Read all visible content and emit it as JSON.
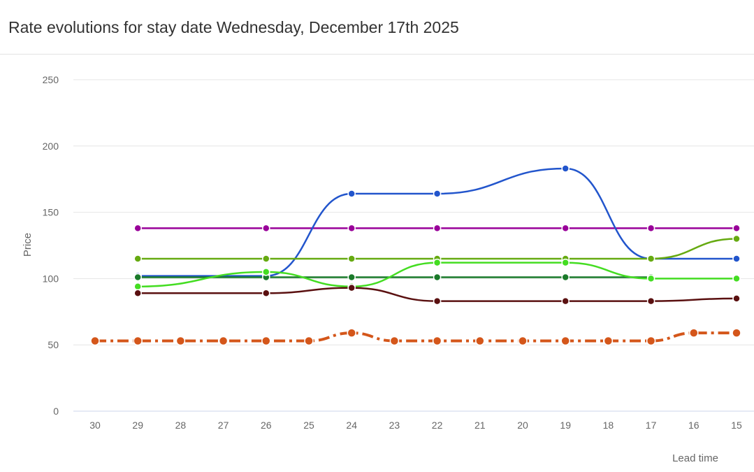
{
  "header": {
    "title": "Rate evolutions for stay date Wednesday, December 17th 2025"
  },
  "chart_data": {
    "type": "line",
    "title": "Rate evolutions for stay date Wednesday, December 17th 2025",
    "xlabel": "Lead time",
    "ylabel": "Price",
    "ylim": [
      0,
      250
    ],
    "yticks": [
      0,
      50,
      100,
      150,
      200,
      250
    ],
    "xticks": [
      30,
      29,
      28,
      27,
      26,
      25,
      24,
      23,
      22,
      21,
      20,
      19,
      18,
      17,
      16,
      15
    ],
    "x_reversed": true,
    "grid": "horizontal",
    "series": [
      {
        "color": "#990099",
        "style": "solid",
        "points": [
          [
            29,
            138
          ],
          [
            26,
            138
          ],
          [
            24,
            138
          ],
          [
            22,
            138
          ],
          [
            19,
            138
          ],
          [
            17,
            138
          ],
          [
            15,
            138
          ]
        ]
      },
      {
        "color": "#2255cc",
        "style": "solid",
        "points": [
          [
            29,
            102
          ],
          [
            26,
            102
          ],
          [
            24,
            164
          ],
          [
            22,
            164
          ],
          [
            19,
            183
          ],
          [
            17,
            115
          ],
          [
            15,
            115
          ]
        ]
      },
      {
        "color": "#66aa11",
        "style": "solid",
        "points": [
          [
            29,
            115
          ],
          [
            26,
            115
          ],
          [
            24,
            115
          ],
          [
            22,
            115
          ],
          [
            19,
            115
          ],
          [
            17,
            115
          ],
          [
            15,
            130
          ]
        ]
      },
      {
        "color": "#1a7a2a",
        "style": "solid",
        "points": [
          [
            29,
            101
          ],
          [
            26,
            101
          ],
          [
            24,
            101
          ],
          [
            22,
            101
          ],
          [
            19,
            101
          ],
          [
            17,
            101
          ]
        ]
      },
      {
        "color": "#44dd22",
        "style": "solid",
        "points": [
          [
            29,
            94
          ],
          [
            26,
            105
          ],
          [
            24,
            94
          ],
          [
            22,
            112
          ],
          [
            19,
            112
          ],
          [
            17,
            100
          ],
          [
            15,
            100
          ]
        ]
      },
      {
        "color": "#5a1010",
        "style": "solid",
        "points": [
          [
            29,
            89
          ],
          [
            26,
            89
          ],
          [
            24,
            93
          ],
          [
            22,
            83
          ],
          [
            19,
            83
          ],
          [
            17,
            83
          ],
          [
            15,
            85
          ]
        ]
      },
      {
        "color": "#d4561a",
        "style": "dashdot",
        "points": [
          [
            30,
            53
          ],
          [
            29,
            53
          ],
          [
            28,
            53
          ],
          [
            27,
            53
          ],
          [
            26,
            53
          ],
          [
            25,
            53
          ],
          [
            24,
            59
          ],
          [
            23,
            53
          ],
          [
            22,
            53
          ],
          [
            21,
            53
          ],
          [
            20,
            53
          ],
          [
            19,
            53
          ],
          [
            18,
            53
          ],
          [
            17,
            53
          ],
          [
            16,
            59
          ],
          [
            15,
            59
          ]
        ]
      }
    ]
  }
}
